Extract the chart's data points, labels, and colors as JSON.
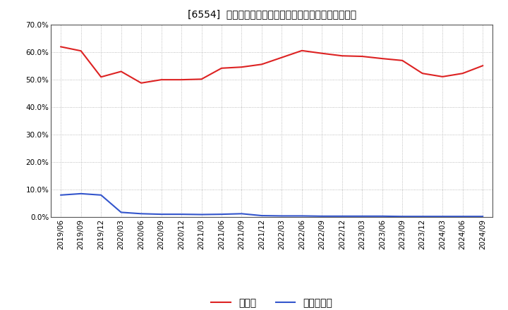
{
  "title": "[6554]  現預金、有利子負債の総資産に対する比率の推移",
  "x_labels": [
    "2019/06",
    "2019/09",
    "2019/12",
    "2020/03",
    "2020/06",
    "2020/09",
    "2020/12",
    "2021/03",
    "2021/06",
    "2021/09",
    "2021/12",
    "2022/03",
    "2022/06",
    "2022/09",
    "2022/12",
    "2023/03",
    "2023/06",
    "2023/09",
    "2023/12",
    "2024/03",
    "2024/06",
    "2024/09"
  ],
  "cash_values": [
    0.62,
    0.605,
    0.51,
    0.53,
    0.488,
    0.5,
    0.5,
    0.502,
    0.542,
    0.546,
    0.556,
    0.581,
    0.606,
    0.596,
    0.587,
    0.585,
    0.577,
    0.57,
    0.523,
    0.511,
    0.523,
    0.551
  ],
  "debt_values": [
    0.08,
    0.085,
    0.08,
    0.017,
    0.012,
    0.01,
    0.01,
    0.009,
    0.01,
    0.012,
    0.005,
    0.004,
    0.004,
    0.003,
    0.003,
    0.003,
    0.003,
    0.002,
    0.002,
    0.002,
    0.002,
    0.002
  ],
  "cash_color": "#dd2222",
  "debt_color": "#3355cc",
  "background_color": "#ffffff",
  "grid_color": "#aaaaaa",
  "ylim": [
    0.0,
    0.7
  ],
  "yticks": [
    0.0,
    0.1,
    0.2,
    0.3,
    0.4,
    0.5,
    0.6,
    0.7
  ],
  "legend_cash": "現預金",
  "legend_debt": "有利子負債",
  "title_fontsize": 12,
  "tick_fontsize": 7.5,
  "legend_fontsize": 10
}
